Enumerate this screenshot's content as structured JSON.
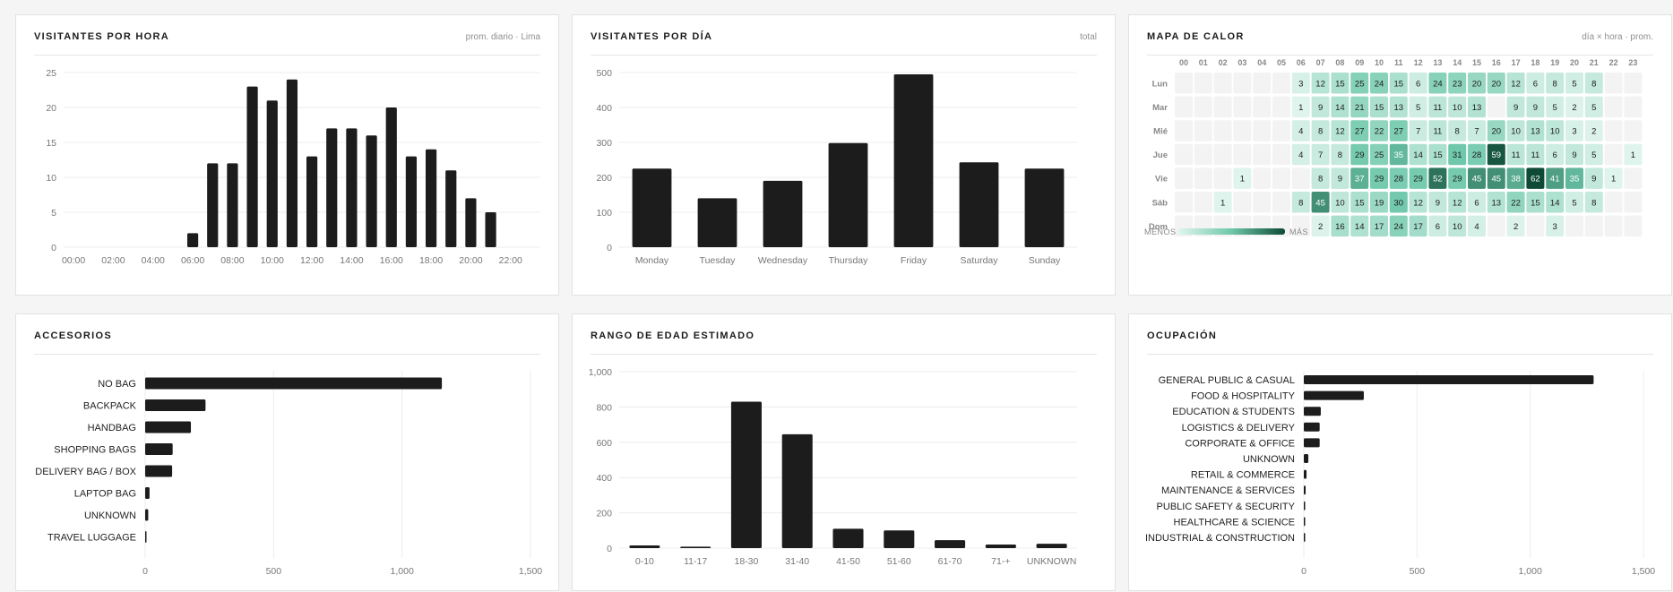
{
  "colors": {
    "bar": "#1c1c1c",
    "grid": "#ececec",
    "axis_text": "#777777",
    "heat_low": "#e3f5ef",
    "heat_mid": "#6fc8ab",
    "heat_high": "#0e4a36",
    "heat_empty": "#f3f3f3"
  },
  "chart_data": [
    {
      "id": "hour",
      "type": "bar",
      "title": "VISITANTES POR HORA",
      "subtitle": "prom. diario · Lima",
      "categories": [
        "00:00",
        "01:00",
        "02:00",
        "03:00",
        "04:00",
        "05:00",
        "06:00",
        "07:00",
        "08:00",
        "09:00",
        "10:00",
        "11:00",
        "12:00",
        "13:00",
        "14:00",
        "15:00",
        "16:00",
        "17:00",
        "18:00",
        "19:00",
        "20:00",
        "21:00",
        "22:00",
        "23:00"
      ],
      "values": [
        0,
        0,
        0,
        0,
        0,
        0,
        2,
        12,
        12,
        23,
        21,
        24,
        13,
        17,
        17,
        16,
        20,
        13,
        14,
        11,
        7,
        5,
        0,
        0
      ],
      "xticks": [
        "00:00",
        "02:00",
        "04:00",
        "06:00",
        "08:00",
        "10:00",
        "12:00",
        "14:00",
        "16:00",
        "18:00",
        "20:00",
        "22:00"
      ],
      "yticks": [
        "0",
        "5",
        "10",
        "15",
        "20",
        "25"
      ],
      "ylim": [
        0,
        25
      ]
    },
    {
      "id": "day",
      "type": "bar",
      "title": "VISITANTES POR DÍA",
      "subtitle": "total",
      "categories": [
        "Monday",
        "Tuesday",
        "Wednesday",
        "Thursday",
        "Friday",
        "Saturday",
        "Sunday"
      ],
      "values": [
        225,
        140,
        190,
        298,
        495,
        243,
        225
      ],
      "yticks": [
        "0",
        "100",
        "200",
        "300",
        "400",
        "500"
      ],
      "ylim": [
        0,
        500
      ]
    },
    {
      "id": "heat",
      "type": "heatmap",
      "title": "MAPA DE CALOR",
      "subtitle": "día × hora · prom.",
      "columns": [
        "00",
        "01",
        "02",
        "03",
        "04",
        "05",
        "06",
        "07",
        "08",
        "09",
        "10",
        "11",
        "12",
        "13",
        "14",
        "15",
        "16",
        "17",
        "18",
        "19",
        "20",
        "21",
        "22",
        "23"
      ],
      "rows": [
        "Lun",
        "Mar",
        "Mié",
        "Jue",
        "Vie",
        "Sáb",
        "Dom"
      ],
      "values": [
        [
          null,
          null,
          null,
          null,
          null,
          null,
          3,
          12,
          15,
          25,
          24,
          15,
          6,
          24,
          23,
          20,
          20,
          12,
          6,
          8,
          5,
          8,
          null,
          null
        ],
        [
          null,
          null,
          null,
          null,
          null,
          null,
          1,
          9,
          14,
          21,
          15,
          13,
          5,
          11,
          10,
          13,
          null,
          9,
          9,
          5,
          2,
          5,
          null,
          null
        ],
        [
          null,
          null,
          null,
          null,
          null,
          null,
          4,
          8,
          12,
          27,
          22,
          27,
          7,
          11,
          8,
          7,
          20,
          10,
          13,
          10,
          3,
          2,
          null,
          null
        ],
        [
          null,
          null,
          null,
          null,
          null,
          null,
          4,
          7,
          8,
          29,
          25,
          35,
          14,
          15,
          31,
          28,
          59,
          11,
          11,
          6,
          9,
          5,
          null,
          1
        ],
        [
          null,
          null,
          null,
          1,
          null,
          null,
          null,
          8,
          9,
          37,
          29,
          28,
          29,
          52,
          29,
          45,
          45,
          38,
          62,
          41,
          35,
          9,
          1,
          null
        ],
        [
          null,
          null,
          1,
          null,
          null,
          null,
          8,
          45,
          10,
          15,
          19,
          30,
          12,
          9,
          12,
          6,
          13,
          22,
          15,
          14,
          5,
          8,
          null,
          null
        ],
        [
          null,
          null,
          null,
          null,
          null,
          null,
          null,
          2,
          16,
          14,
          17,
          24,
          17,
          6,
          10,
          4,
          null,
          2,
          null,
          3,
          null,
          null,
          null,
          null
        ]
      ],
      "vmax": 62,
      "legend_low": "MENOS",
      "legend_high": "MÁS"
    },
    {
      "id": "acc",
      "type": "bar",
      "orientation": "horizontal",
      "title": "ACCESORIOS",
      "subtitle": "",
      "categories": [
        "NO BAG",
        "BACKPACK",
        "HANDBAG",
        "SHOPPING BAGS",
        "DELIVERY BAG / BOX",
        "LAPTOP BAG",
        "UNKNOWN",
        "TRAVEL LUGGAGE"
      ],
      "values": [
        1155,
        235,
        178,
        107,
        105,
        17,
        12,
        3
      ],
      "xticks": [
        "0",
        "500",
        "1,000",
        "1,500"
      ],
      "xlim": [
        0,
        1500
      ]
    },
    {
      "id": "age",
      "type": "bar",
      "title": "RANGO DE EDAD ESTIMADO",
      "subtitle": "",
      "categories": [
        "0-10",
        "11-17",
        "18-30",
        "31-40",
        "41-50",
        "51-60",
        "61-70",
        "71-+",
        "UNKNOWN"
      ],
      "values": [
        15,
        8,
        830,
        645,
        110,
        100,
        45,
        20,
        25
      ],
      "yticks": [
        "0",
        "200",
        "400",
        "600",
        "800",
        "1,000"
      ],
      "ylim": [
        0,
        1000
      ]
    },
    {
      "id": "occ",
      "type": "bar",
      "orientation": "horizontal",
      "title": "OCUPACIÓN",
      "subtitle": "",
      "categories": [
        "GENERAL PUBLIC & CASUAL",
        "FOOD & HOSPITALITY",
        "EDUCATION & STUDENTS",
        "LOGISTICS & DELIVERY",
        "CORPORATE & OFFICE",
        "UNKNOWN",
        "RETAIL & COMMERCE",
        "MAINTENANCE & SERVICES",
        "PUBLIC SAFETY & SECURITY",
        "HEALTHCARE & SCIENCE",
        "INDUSTRIAL & CONSTRUCTION"
      ],
      "values": [
        1280,
        265,
        75,
        70,
        70,
        20,
        12,
        8,
        5,
        1,
        4
      ],
      "xticks": [
        "0",
        "500",
        "1,000",
        "1,500"
      ],
      "xlim": [
        0,
        1500
      ]
    }
  ]
}
